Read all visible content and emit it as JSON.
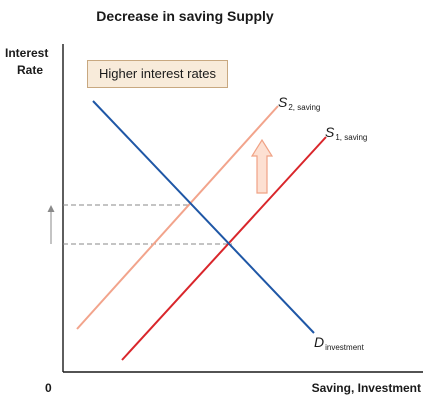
{
  "title": "Decrease in saving Supply",
  "axes": {
    "y_label_line1": "Interest",
    "y_label_line2": "Rate",
    "x_label": "Saving, Investment",
    "origin_label": "0"
  },
  "callout": "Higher interest rates",
  "curves": {
    "s2": {
      "main": "S",
      "sub": "2, saving",
      "color": "#f2a48c"
    },
    "s1": {
      "main": "S",
      "sub": "1, saving",
      "color": "#d9262b"
    },
    "d": {
      "main": "D",
      "sub": "investment",
      "color": "#1f57a6"
    }
  },
  "colors": {
    "axis": "#1a1a1a",
    "guide_dash": "#8a8a8a",
    "shift_arrow_fill": "#fde0d2",
    "shift_arrow_stroke": "#f0a285"
  }
}
